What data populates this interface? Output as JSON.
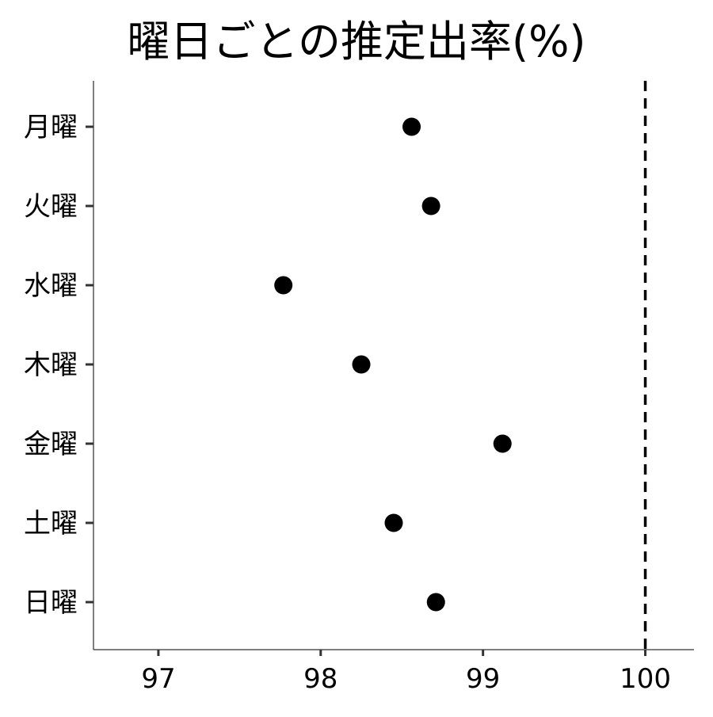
{
  "chart_data": {
    "type": "scatter",
    "title": "曜日ごとの推定出率(%)",
    "xlabel": "",
    "ylabel": "",
    "categories": [
      "月曜",
      "火曜",
      "水曜",
      "木曜",
      "金曜",
      "土曜",
      "日曜"
    ],
    "values": [
      98.56,
      98.68,
      97.77,
      98.25,
      99.12,
      98.45,
      98.71
    ],
    "xlim": [
      96.6,
      100.3
    ],
    "xticks": [
      97,
      98,
      99,
      100
    ],
    "reference_line": {
      "x": 100,
      "style": "dashed"
    },
    "grid": false,
    "legend": "none",
    "colors": {
      "point": "#000000",
      "axis": "#555555",
      "reference": "#000000"
    }
  }
}
